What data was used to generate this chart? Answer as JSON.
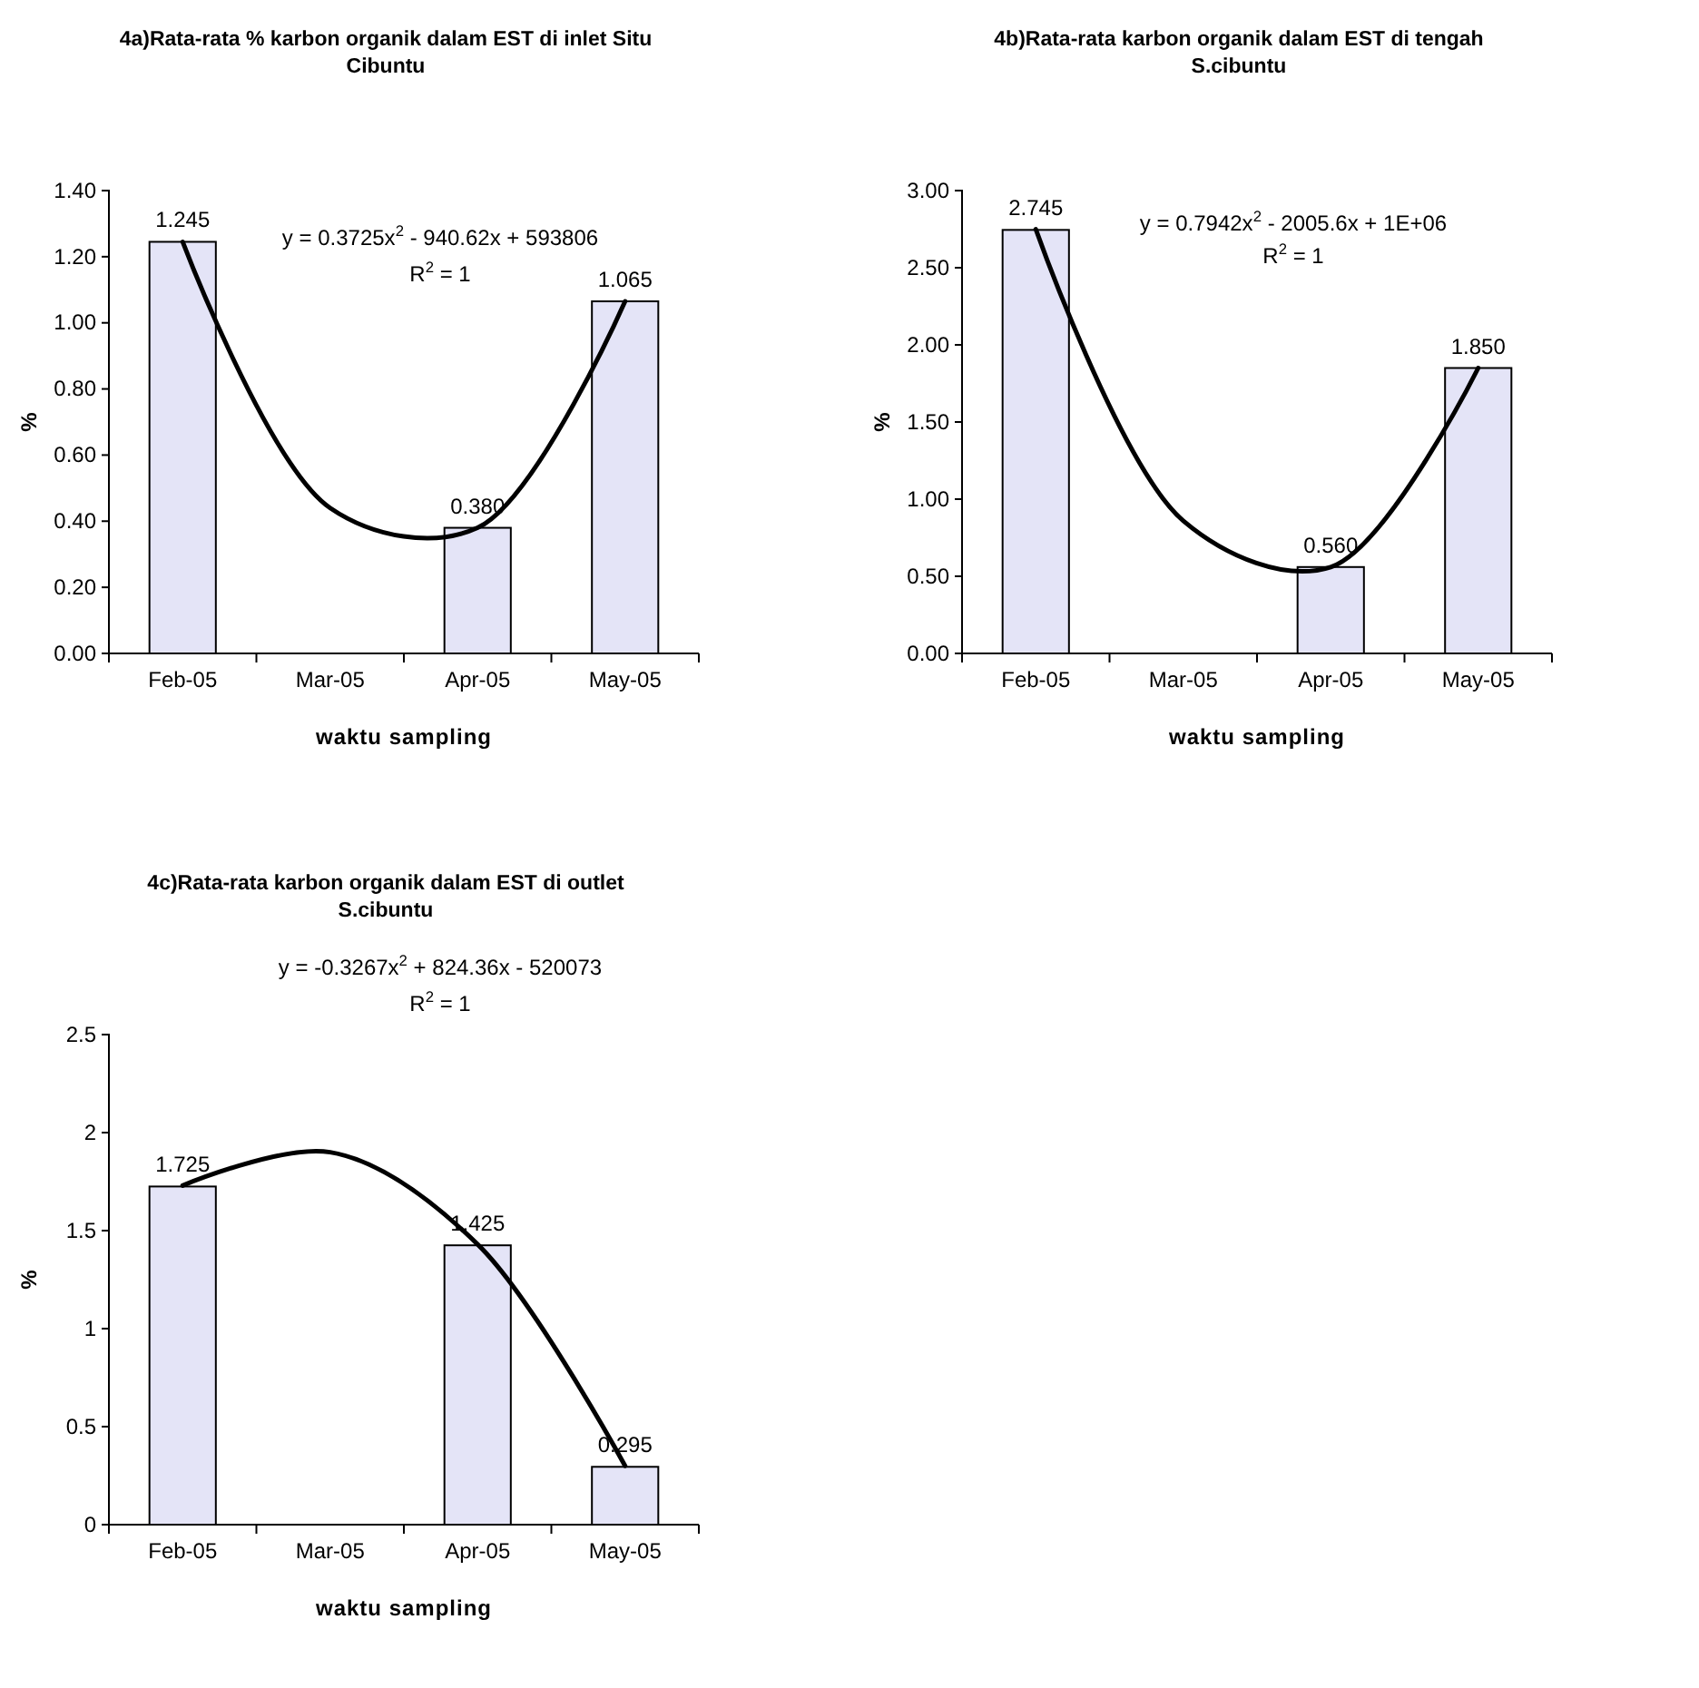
{
  "chart_data": [
    {
      "type": "bar",
      "title": "4a)Rata-rata % karbon organik dalam EST di inlet Situ Cibuntu",
      "xlabel": "waktu sampling",
      "ylabel": "%",
      "categories": [
        "Feb-05",
        "Mar-05",
        "Apr-05",
        "May-05"
      ],
      "series": [
        {
          "color": "#e4e4f7",
          "values": [
            1.245,
            null,
            0.38,
            1.065
          ],
          "value_labels": [
            "1.245",
            null,
            "0.380",
            "1.065"
          ]
        },
        {
          "type": "line",
          "color": "#000000",
          "values": [
            1.245,
            0.44,
            0.38,
            1.065
          ]
        }
      ],
      "ylim": [
        0,
        1.4
      ],
      "yticks": [
        {
          "value": 0,
          "label": "0.00"
        },
        {
          "value": 0.2,
          "label": "0.20"
        },
        {
          "value": 0.4,
          "label": "0.40"
        },
        {
          "value": 0.6,
          "label": "0.60"
        },
        {
          "value": 0.8,
          "label": "0.80"
        },
        {
          "value": 1,
          "label": "1.00"
        },
        {
          "value": 1.2,
          "label": "1.20"
        },
        {
          "value": 1.4,
          "label": "1.40"
        }
      ],
      "annotations": [
        "y = 0.3725x$^{2}$ - 940.62x + 593806",
        "R$^{2}$ = 1"
      ],
      "grid": false,
      "marker": "none",
      "line_style": "solid"
    },
    {
      "type": "bar",
      "title": "4b)Rata-rata karbon organik dalam EST di tengah S.cibuntu",
      "xlabel": "waktu sampling",
      "ylabel": "%",
      "categories": [
        "Feb-05",
        "Mar-05",
        "Apr-05",
        "May-05"
      ],
      "series": [
        {
          "color": "#e4e4f7",
          "values": [
            2.745,
            null,
            0.56,
            1.85
          ],
          "value_labels": [
            "2.745",
            null,
            "0.560",
            "1.850"
          ]
        },
        {
          "type": "line",
          "color": "#000000",
          "values": [
            2.75,
            0.86,
            0.56,
            1.85
          ]
        }
      ],
      "ylim": [
        0,
        3
      ],
      "yticks": [
        {
          "value": 0,
          "label": "0.00"
        },
        {
          "value": 0.5,
          "label": "0.50"
        },
        {
          "value": 1,
          "label": "1.00"
        },
        {
          "value": 1.5,
          "label": "1.50"
        },
        {
          "value": 2,
          "label": "2.00"
        },
        {
          "value": 2.5,
          "label": "2.50"
        },
        {
          "value": 3,
          "label": "3.00"
        }
      ],
      "annotations": [
        "y = 0.7942x$^{2}$ - 2005.6x + 1E+06",
        "R$^{2}$ = 1"
      ],
      "grid": false,
      "marker": "none",
      "line_style": "solid"
    },
    {
      "type": "bar",
      "title": "4c)Rata-rata karbon organik dalam EST di outlet S.cibuntu",
      "xlabel": "waktu sampling",
      "ylabel": "%",
      "categories": [
        "Feb-05",
        "Mar-05",
        "Apr-05",
        "May-05"
      ],
      "series": [
        {
          "color": "#e4e4f7",
          "values": [
            1.725,
            null,
            1.425,
            0.295
          ],
          "value_labels": [
            "1.725",
            null,
            "1.425",
            "0.295"
          ]
        },
        {
          "type": "line",
          "color": "#000000",
          "values": [
            1.73,
            1.9,
            1.43,
            0.3
          ]
        }
      ],
      "ylim": [
        0,
        2.5
      ],
      "yticks": [
        0,
        0.5,
        1,
        1.5,
        2,
        2.5
      ],
      "annotations": [
        "y = -0.3267x$^{2}$ + 824.36x - 520073",
        "R$^{2}$ = 1"
      ],
      "grid": false,
      "marker": "none",
      "line_style": "solid"
    }
  ]
}
